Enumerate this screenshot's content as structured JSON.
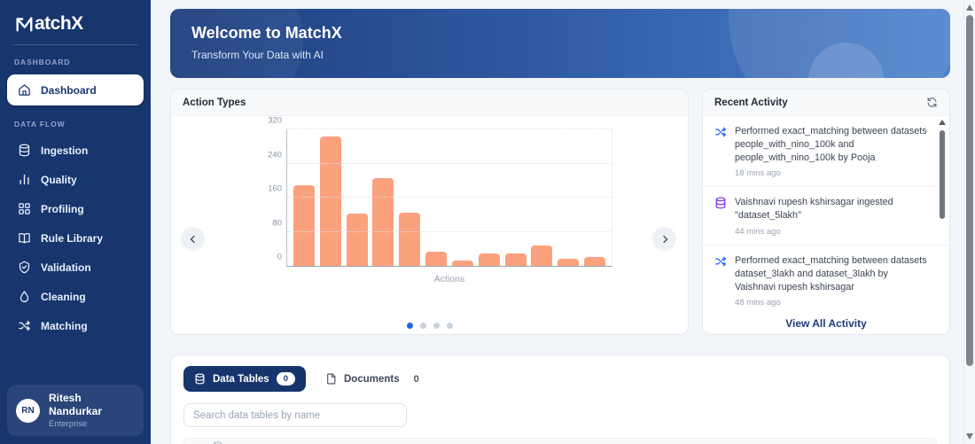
{
  "app": {
    "name": "MatchX",
    "logo_rest": "atchX"
  },
  "sidebar": {
    "section_dashboard": "DASHBOARD",
    "section_dataflow": "DATA FLOW",
    "dashboard_label": "Dashboard",
    "flow_items": [
      {
        "label": "Ingestion",
        "icon": "database-icon"
      },
      {
        "label": "Quality",
        "icon": "bar-chart-icon"
      },
      {
        "label": "Profiling",
        "icon": "grid-icon"
      },
      {
        "label": "Rule Library",
        "icon": "book-icon"
      },
      {
        "label": "Validation",
        "icon": "shield-check-icon"
      },
      {
        "label": "Cleaning",
        "icon": "droplet-icon"
      },
      {
        "label": "Matching",
        "icon": "shuffle-icon"
      }
    ],
    "user": {
      "initials": "RN",
      "name": "Ritesh Nandurkar",
      "plan": "Enterprise"
    }
  },
  "banner": {
    "title": "Welcome to MatchX",
    "subtitle": "Transform Your Data with AI"
  },
  "action_types": {
    "title": "Action Types"
  },
  "chart_data": {
    "type": "bar",
    "title": "Action Types",
    "categories": [
      "",
      "",
      "",
      "",
      "",
      "",
      "",
      "",
      "",
      "",
      "",
      ""
    ],
    "values": [
      190,
      303,
      122,
      205,
      124,
      34,
      12,
      30,
      30,
      47,
      16,
      21
    ],
    "xlabel": "Actions",
    "ylabel": "",
    "ylim": [
      0,
      320
    ],
    "yticks": [
      0,
      80,
      160,
      240,
      320
    ],
    "bar_color": "#FCA17D",
    "grid": "horizontal-dotted",
    "pagination_dots": 4,
    "pagination_active_index": 0
  },
  "recent_activity": {
    "title": "Recent Activity",
    "items": [
      {
        "icon": "shuffle-icon",
        "text": "Performed exact_matching between datasets people_with_nino_100k and people_with_nino_100k by Pooja",
        "time": "18 mins ago"
      },
      {
        "icon": "database-icon",
        "text": "Vaishnavi rupesh kshirsagar ingested \"dataset_5lakh\"",
        "time": "44 mins ago"
      },
      {
        "icon": "shuffle-icon",
        "text": "Performed exact_matching between datasets dataset_3lakh and dataset_3lakh by Vaishnavi rupesh kshirsagar",
        "time": "48 mins ago"
      }
    ],
    "footer_link": "View All Activity"
  },
  "tables_panel": {
    "tab_data_tables": "Data Tables",
    "tab_data_tables_count": "0",
    "tab_documents": "Documents",
    "tab_documents_count": "0",
    "search_placeholder": "Search data tables by name"
  },
  "colors": {
    "sidebar_navy": "#17366e",
    "banner_gradient_start": "#1e3f7e",
    "banner_gradient_end": "#4b80cc",
    "bar_orange": "#FCA17D",
    "active_dot_blue": "#2563eb",
    "activity_shuffle_blue": "#2563eb",
    "activity_database_purple": "#7c3aed"
  }
}
